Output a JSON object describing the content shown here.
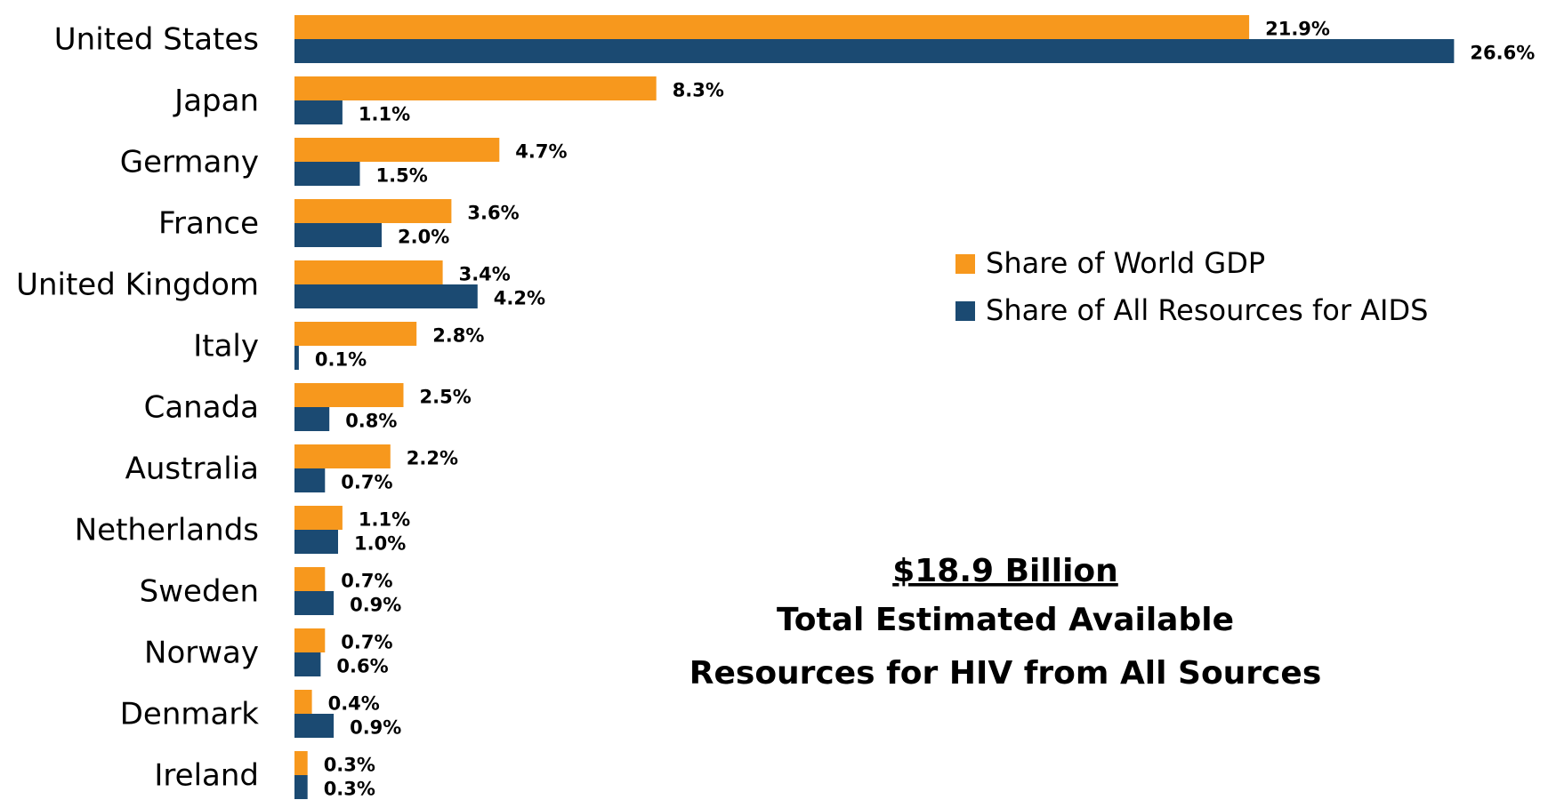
{
  "chart_data": {
    "type": "hbar",
    "categories": [
      "United States",
      "Japan",
      "Germany",
      "France",
      "United Kingdom",
      "Italy",
      "Canada",
      "Australia",
      "Netherlands",
      "Sweden",
      "Norway",
      "Denmark",
      "Ireland"
    ],
    "series": [
      {
        "name": "Share of World GDP",
        "color": "#f7981d",
        "values": [
          21.9,
          8.3,
          4.7,
          3.6,
          3.4,
          2.8,
          2.5,
          2.2,
          1.1,
          0.7,
          0.7,
          0.4,
          0.3
        ],
        "value_labels": [
          "21.9%",
          "8.3%",
          "4.7%",
          "3.6%",
          "3.4%",
          "2.8%",
          "2.5%",
          "2.2%",
          "1.1%",
          "0.7%",
          "0.7%",
          "0.4%",
          "0.3%"
        ]
      },
      {
        "name": "Share of All Resources for AIDS",
        "color": "#1b4a72",
        "values": [
          26.6,
          1.1,
          1.5,
          2.0,
          4.2,
          0.1,
          0.8,
          0.7,
          1.0,
          0.9,
          0.6,
          0.9,
          0.3
        ],
        "value_labels": [
          "26.6%",
          "1.1%",
          "1.5%",
          "2.0%",
          "4.2%",
          "0.1%",
          "0.8%",
          "0.7%",
          "1.0%",
          "0.9%",
          "0.6%",
          "0.9%",
          "0.3%"
        ]
      }
    ],
    "xlim": [
      0,
      28
    ],
    "annotations": [
      "$18.9 Billion",
      "Total Estimated Available",
      "Resources for HIV from All Sources"
    ]
  }
}
